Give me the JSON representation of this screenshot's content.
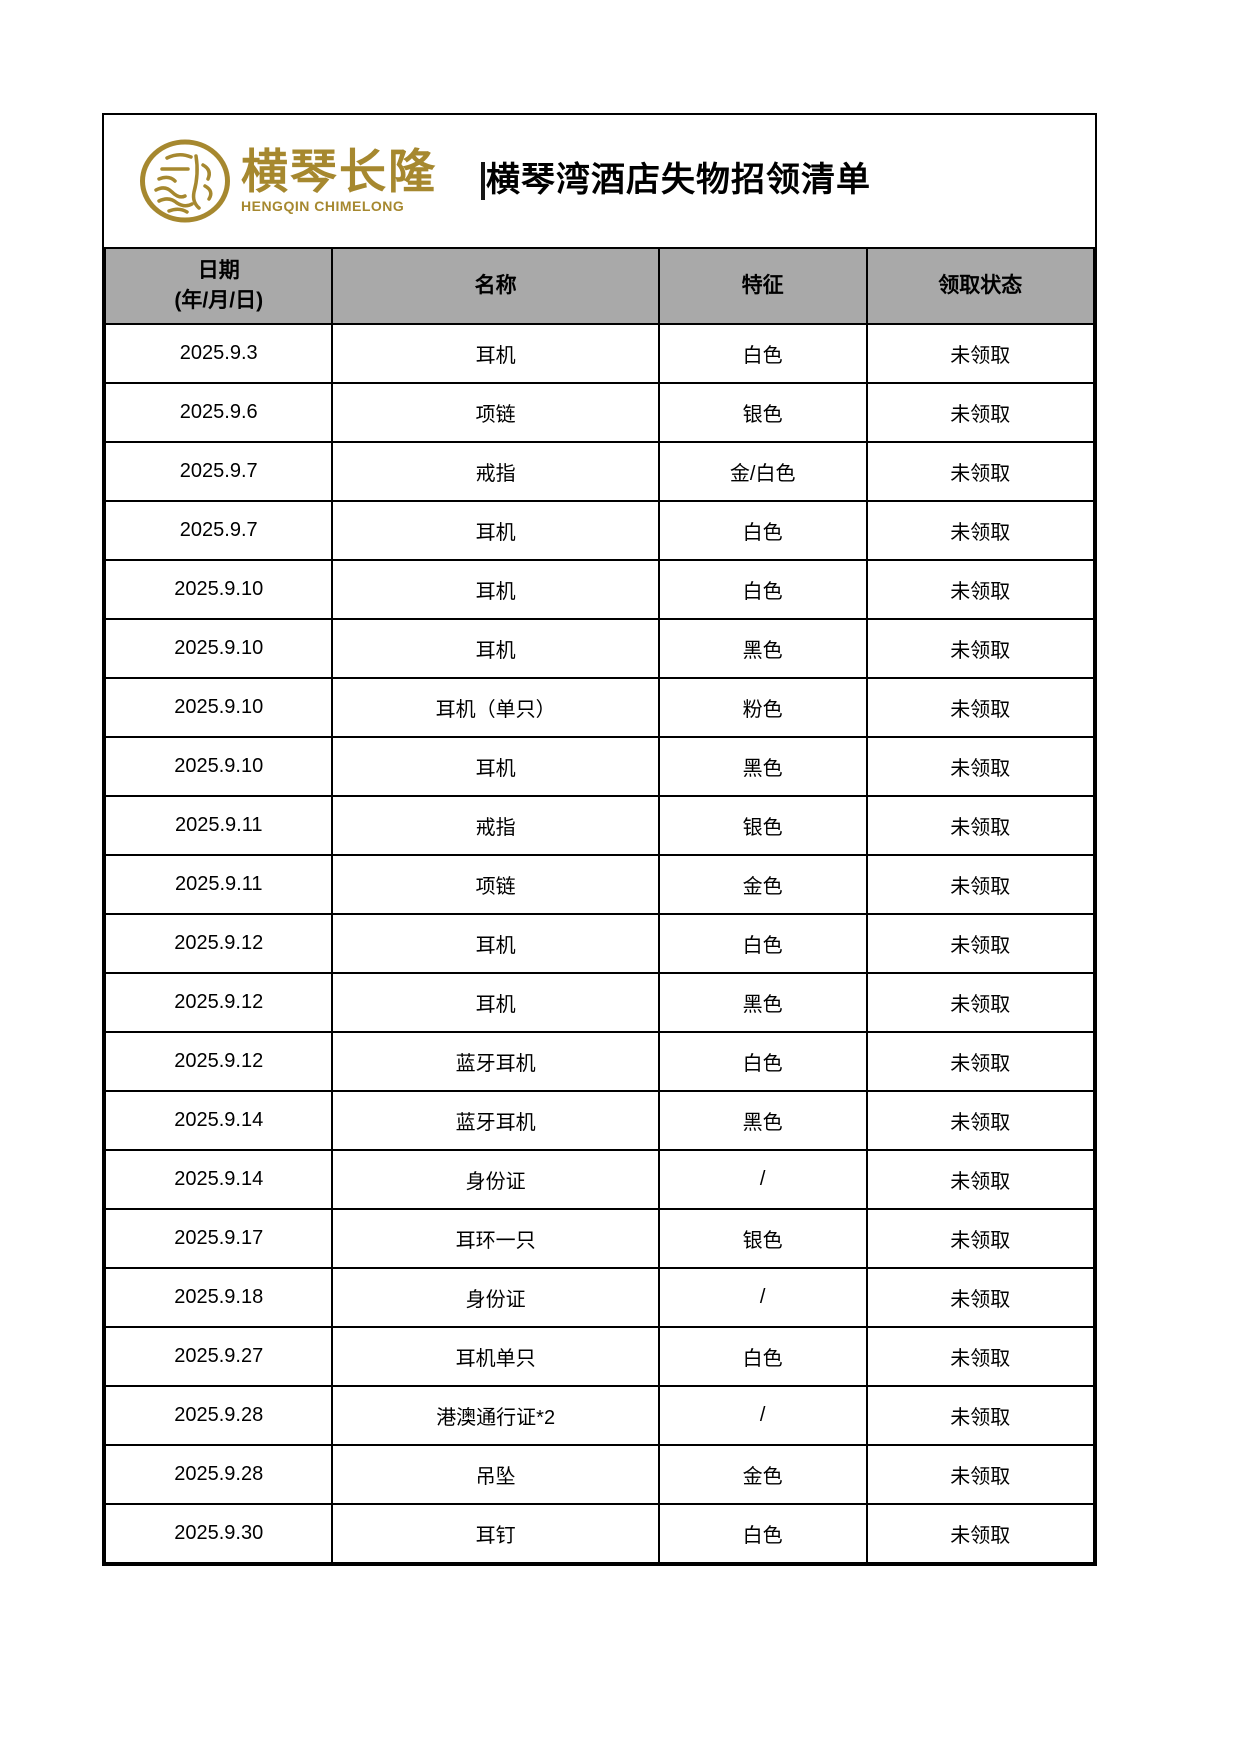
{
  "document": {
    "logo": {
      "emblem_icon": "chimelong-seal-icon",
      "brand_cn": "横琴长隆",
      "brand_en": "HENGQIN CHIMELONG",
      "gold_color": "#A6882F"
    },
    "title": "横琴湾酒店失物招领清单"
  },
  "table": {
    "header_bg": "#A9A9A9",
    "border_color": "#000000",
    "header": {
      "date_line1": "日期",
      "date_line2": "(年/月/日)",
      "name": "名称",
      "feature": "特征",
      "status": "领取状态"
    },
    "rows": [
      {
        "date": "2025.9.3",
        "name": "耳机",
        "feature": "白色",
        "status": "未领取"
      },
      {
        "date": "2025.9.6",
        "name": "项链",
        "feature": "银色",
        "status": "未领取"
      },
      {
        "date": "2025.9.7",
        "name": "戒指",
        "feature": "金/白色",
        "status": "未领取"
      },
      {
        "date": "2025.9.7",
        "name": "耳机",
        "feature": "白色",
        "status": "未领取"
      },
      {
        "date": "2025.9.10",
        "name": "耳机",
        "feature": "白色",
        "status": "未领取"
      },
      {
        "date": "2025.9.10",
        "name": "耳机",
        "feature": "黑色",
        "status": "未领取"
      },
      {
        "date": "2025.9.10",
        "name": "耳机（单只）",
        "feature": "粉色",
        "status": "未领取"
      },
      {
        "date": "2025.9.10",
        "name": "耳机",
        "feature": "黑色",
        "status": "未领取"
      },
      {
        "date": "2025.9.11",
        "name": "戒指",
        "feature": "银色",
        "status": "未领取"
      },
      {
        "date": "2025.9.11",
        "name": "项链",
        "feature": "金色",
        "status": "未领取"
      },
      {
        "date": "2025.9.12",
        "name": "耳机",
        "feature": "白色",
        "status": "未领取"
      },
      {
        "date": "2025.9.12",
        "name": "耳机",
        "feature": "黑色",
        "status": "未领取"
      },
      {
        "date": "2025.9.12",
        "name": "蓝牙耳机",
        "feature": "白色",
        "status": "未领取"
      },
      {
        "date": "2025.9.14",
        "name": "蓝牙耳机",
        "feature": "黑色",
        "status": "未领取"
      },
      {
        "date": "2025.9.14",
        "name": "身份证",
        "feature": "/",
        "status": "未领取"
      },
      {
        "date": "2025.9.17",
        "name": "耳环一只",
        "feature": "银色",
        "status": "未领取"
      },
      {
        "date": "2025.9.18",
        "name": "身份证",
        "feature": "/",
        "status": "未领取"
      },
      {
        "date": "2025.9.27",
        "name": "耳机单只",
        "feature": "白色",
        "status": "未领取"
      },
      {
        "date": "2025.9.28",
        "name": "港澳通行证*2",
        "feature": "/",
        "status": "未领取"
      },
      {
        "date": "2025.9.28",
        "name": "吊坠",
        "feature": "金色",
        "status": "未领取"
      },
      {
        "date": "2025.9.30",
        "name": "耳钉",
        "feature": "白色",
        "status": "未领取"
      }
    ]
  }
}
